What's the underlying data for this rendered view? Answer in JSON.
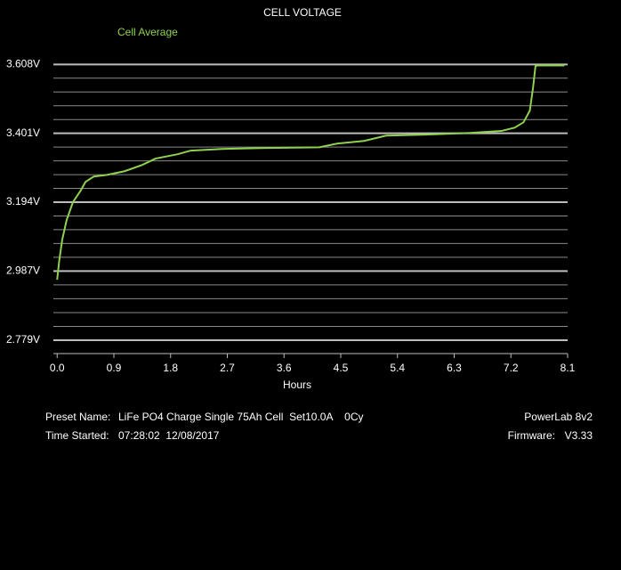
{
  "chart_data": {
    "type": "line",
    "title": "CELL VOLTAGE",
    "x_label": "Hours",
    "x": [
      0,
      0.03,
      0.08,
      0.15,
      0.25,
      0.37,
      0.45,
      0.58,
      0.79,
      1.07,
      1.35,
      1.56,
      1.91,
      2.12,
      2.62,
      3.32,
      4.16,
      4.44,
      4.87,
      5.22,
      5.85,
      6.55,
      7.05,
      7.26,
      7.4,
      7.5,
      7.55,
      7.59,
      7.62,
      8.05
    ],
    "series": [
      {
        "name": "Cell Average",
        "color": "#8fd14f",
        "values": [
          2.961,
          3.014,
          3.081,
          3.14,
          3.194,
          3.228,
          3.255,
          3.271,
          3.276,
          3.287,
          3.306,
          3.325,
          3.338,
          3.349,
          3.354,
          3.357,
          3.359,
          3.37,
          3.378,
          3.394,
          3.397,
          3.402,
          3.408,
          3.418,
          3.434,
          3.469,
          3.536,
          3.603,
          3.605,
          3.605
        ]
      }
    ],
    "xlim": [
      -0.06,
      8.1
    ],
    "xticks": [
      {
        "value": 0,
        "label": "0.0"
      },
      0.9,
      1.8,
      2.7,
      3.6,
      4.5,
      5.4,
      6.3,
      7.2,
      8.1
    ],
    "ylim": [
      2.739,
      3.649
    ],
    "yticks": [
      {
        "value": 2.779,
        "label": "2.779V"
      },
      {
        "value": 2.987,
        "label": "2.987V"
      },
      {
        "value": 3.194,
        "label": "3.194V"
      },
      {
        "value": 3.401,
        "label": "3.401V"
      },
      {
        "value": 3.608,
        "label": "3.608V"
      }
    ],
    "grid": true
  },
  "footer": {
    "preset_label": "Preset Name:",
    "preset": "LiFe PO4 Charge Single 75Ah Cell  Set10.0A    0Cy",
    "time_label": "Time Started:",
    "time": "07:28:02  12/08/2017",
    "device": "PowerLab 8v2",
    "firmware_label": "Firmware:",
    "firmware": "V3.33"
  }
}
